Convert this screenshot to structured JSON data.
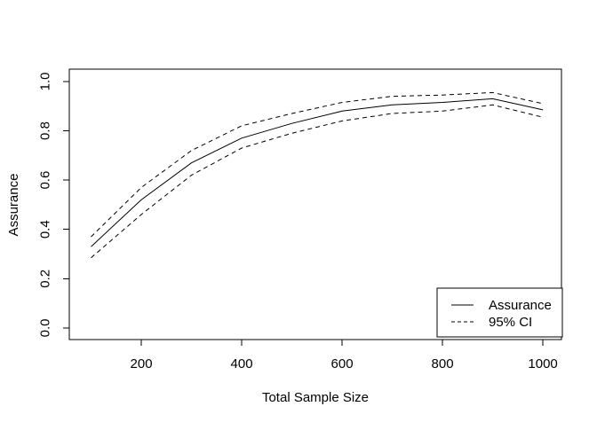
{
  "figure": {
    "background_color": "#ffffff",
    "foreground_color": "#000000"
  },
  "chart_data": {
    "type": "line",
    "title": "",
    "xlabel": "Total Sample Size",
    "ylabel": "Assurance",
    "x": [
      100,
      200,
      300,
      400,
      500,
      600,
      700,
      800,
      900,
      1000
    ],
    "series": [
      {
        "name": "Assurance",
        "style": "solid",
        "values": [
          0.33,
          0.52,
          0.67,
          0.77,
          0.83,
          0.88,
          0.905,
          0.915,
          0.93,
          0.885
        ]
      },
      {
        "name": "95% CI upper",
        "style": "dashed",
        "values": [
          0.37,
          0.57,
          0.72,
          0.82,
          0.87,
          0.915,
          0.94,
          0.945,
          0.955,
          0.91
        ]
      },
      {
        "name": "95% CI lower",
        "style": "dashed",
        "values": [
          0.285,
          0.46,
          0.62,
          0.73,
          0.79,
          0.84,
          0.87,
          0.88,
          0.905,
          0.855
        ]
      }
    ],
    "xlim": [
      56.6,
      1037
    ],
    "ylim": [
      -0.047,
      1.05
    ],
    "x_ticks": [
      200,
      400,
      600,
      800,
      1000
    ],
    "x_tick_labels": [
      "200",
      "400",
      "600",
      "800",
      "1000"
    ],
    "y_ticks": [
      0.0,
      0.2,
      0.4,
      0.6,
      0.8,
      1.0
    ],
    "y_tick_labels": [
      "0.0",
      "0.2",
      "0.4",
      "0.6",
      "0.8",
      "1.0"
    ],
    "grid": false,
    "legend_position": "bottomright"
  },
  "legend": {
    "entries": [
      {
        "label": "Assurance",
        "style": "solid"
      },
      {
        "label": "95% CI",
        "style": "dashed"
      }
    ]
  }
}
